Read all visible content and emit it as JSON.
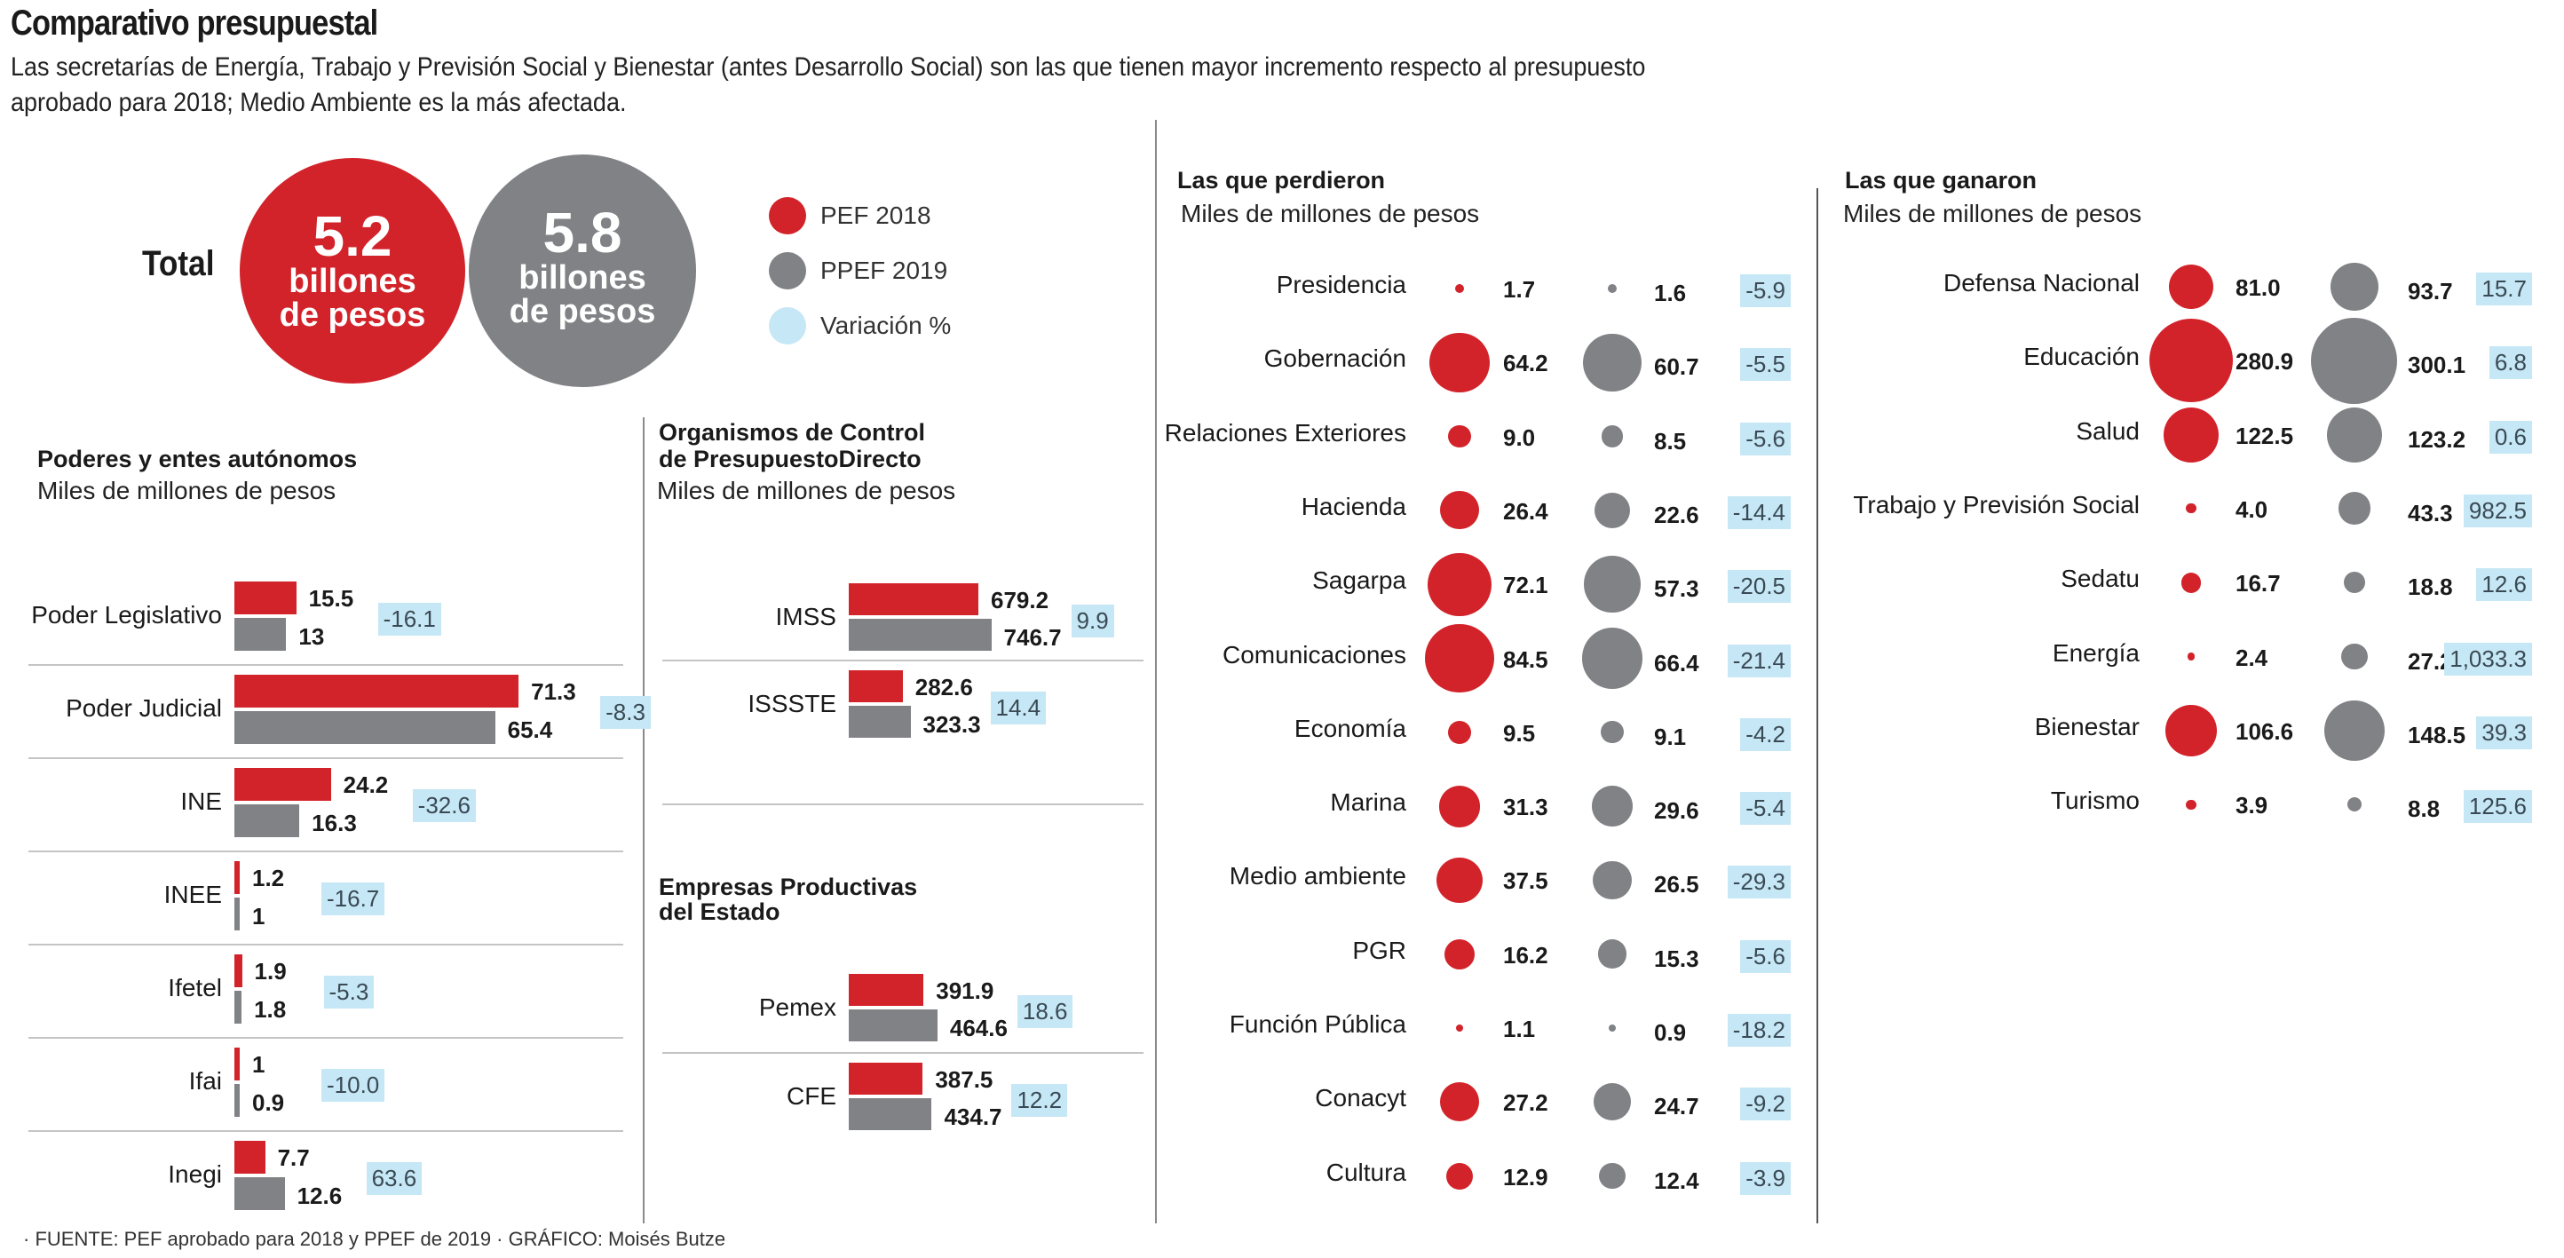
{
  "title": "Comparativo presupuestal",
  "subtitle": "Las secretarías de Energía, Trabajo y Previsión Social y Bienestar (antes Desarrollo Social) son las que tienen mayor incremento respecto al presupuesto aprobado para 2018; Medio Ambiente es la más afectada.",
  "colors": {
    "pef2018": "#d2232a",
    "ppef2019": "#808285",
    "variation": "#c6e7f5"
  },
  "total": {
    "label": "Total",
    "pef2018": {
      "value": "5.2",
      "unit_line1": "billones",
      "unit_line2": "de pesos"
    },
    "ppef2019": {
      "value": "5.8",
      "unit_line1": "billones",
      "unit_line2": "de pesos"
    }
  },
  "legend": [
    {
      "label": "PEF 2018",
      "series": "pef2018"
    },
    {
      "label": "PPEF 2019",
      "series": "ppef2019"
    },
    {
      "label": "Variación %",
      "series": "variation"
    }
  ],
  "footer": "· FUENTE: PEF aprobado para 2018 y PPEF de 2019 · GRÁFICO: Moisés Butze",
  "chart_data": [
    {
      "type": "bar",
      "id": "poderes",
      "title": "Poderes y entes autónomos",
      "subtitle": "Miles de millones de pesos",
      "categories": [
        "Poder Legislativo",
        "Poder Judicial",
        "INE",
        "INEE",
        "Ifetel",
        "Ifai",
        "Inegi"
      ],
      "series": [
        {
          "name": "PEF 2018",
          "values": [
            15.5,
            71.3,
            24.2,
            1.2,
            1.9,
            1,
            7.7
          ],
          "labels": [
            "15.5",
            "71.3",
            "24.2",
            "1.2",
            "1.9",
            "1",
            "7.7"
          ]
        },
        {
          "name": "PPEF 2019",
          "values": [
            13,
            65.4,
            16.3,
            1,
            1.8,
            0.9,
            12.6
          ],
          "labels": [
            "13",
            "65.4",
            "16.3",
            "1",
            "1.8",
            "0.9",
            "12.6"
          ]
        }
      ],
      "variation": [
        "-16.1",
        "-8.3",
        "-32.6",
        "-16.7",
        "-5.3",
        "-10.0",
        "63.6"
      ]
    },
    {
      "type": "bar",
      "id": "organismos",
      "title": "Organismos de Control de PresupuestoDirecto",
      "title_lines": [
        "Organismos de Control",
        "de PresupuestoDirecto"
      ],
      "subtitle": "Miles de millones de pesos",
      "categories": [
        "IMSS",
        "ISSSTE"
      ],
      "series": [
        {
          "name": "PEF 2018",
          "values": [
            679.2,
            282.6
          ],
          "labels": [
            "679.2",
            "282.6"
          ]
        },
        {
          "name": "PPEF 2019",
          "values": [
            746.7,
            323.3
          ],
          "labels": [
            "746.7",
            "323.3"
          ]
        }
      ],
      "variation": [
        "9.9",
        "14.4"
      ]
    },
    {
      "type": "bar",
      "id": "empresas",
      "title": "Empresas Productivas del Estado",
      "title_lines": [
        "Empresas Productivas",
        "del Estado"
      ],
      "categories": [
        "Pemex",
        "CFE"
      ],
      "series": [
        {
          "name": "PEF 2018",
          "values": [
            391.9,
            387.5
          ],
          "labels": [
            "391.9",
            "387.5"
          ]
        },
        {
          "name": "PPEF 2019",
          "values": [
            464.6,
            434.7
          ],
          "labels": [
            "464.6",
            "434.7"
          ]
        }
      ],
      "variation": [
        "18.6",
        "12.2"
      ]
    },
    {
      "type": "scatter",
      "id": "perdieron",
      "title": "Las que perdieron",
      "subtitle": "Miles de millones de pesos",
      "categories": [
        "Presidencia",
        "Gobernación",
        "Relaciones Exteriores",
        "Hacienda",
        "Sagarpa",
        "Comunicaciones",
        "Economía",
        "Marina",
        "Medio ambiente",
        "PGR",
        "Función Pública",
        "Conacyt",
        "Cultura"
      ],
      "series": [
        {
          "name": "PEF 2018",
          "values": [
            1.7,
            64.2,
            9.0,
            26.4,
            72.1,
            84.5,
            9.5,
            31.3,
            37.5,
            16.2,
            1.1,
            27.2,
            12.9
          ],
          "labels": [
            "1.7",
            "64.2",
            "9.0",
            "26.4",
            "72.1",
            "84.5",
            "9.5",
            "31.3",
            "37.5",
            "16.2",
            "1.1",
            "27.2",
            "12.9"
          ]
        },
        {
          "name": "PPEF 2019",
          "values": [
            1.6,
            60.7,
            8.5,
            22.6,
            57.3,
            66.4,
            9.1,
            29.6,
            26.5,
            15.3,
            0.9,
            24.7,
            12.4
          ],
          "labels": [
            "1.6",
            "60.7",
            "8.5",
            "22.6",
            "57.3",
            "66.4",
            "9.1",
            "29.6",
            "26.5",
            "15.3",
            "0.9",
            "24.7",
            "12.4"
          ]
        }
      ],
      "variation": [
        "-5.9",
        "-5.5",
        "-5.6",
        "-14.4",
        "-20.5",
        "-21.4",
        "-4.2",
        "-5.4",
        "-29.3",
        "-5.6",
        "-18.2",
        "-9.2",
        "-3.9"
      ]
    },
    {
      "type": "scatter",
      "id": "ganaron",
      "title": "Las que ganaron",
      "subtitle": "Miles de millones de pesos",
      "categories": [
        "Defensa Nacional",
        "Educación",
        "Salud",
        "Trabajo y Previsión Social",
        "Sedatu",
        "Energía",
        "Bienestar",
        "Turismo"
      ],
      "series": [
        {
          "name": "PEF 2018",
          "values": [
            81.0,
            280.9,
            122.5,
            4.0,
            16.7,
            2.4,
            106.6,
            3.9
          ],
          "labels": [
            "81.0",
            "280.9",
            "122.5",
            "4.0",
            "16.7",
            "2.4",
            "106.6",
            "3.9"
          ]
        },
        {
          "name": "PPEF 2019",
          "values": [
            93.7,
            300.1,
            123.2,
            43.3,
            18.8,
            27.2,
            148.5,
            8.8
          ],
          "labels": [
            "93.7",
            "300.1",
            "123.2",
            "43.3",
            "18.8",
            "27.2",
            "148.5",
            "8.8"
          ]
        }
      ],
      "variation": [
        "15.7",
        "6.8",
        "0.6",
        "982.5",
        "12.6",
        "1,033.3",
        "39.3",
        "125.6"
      ]
    }
  ]
}
